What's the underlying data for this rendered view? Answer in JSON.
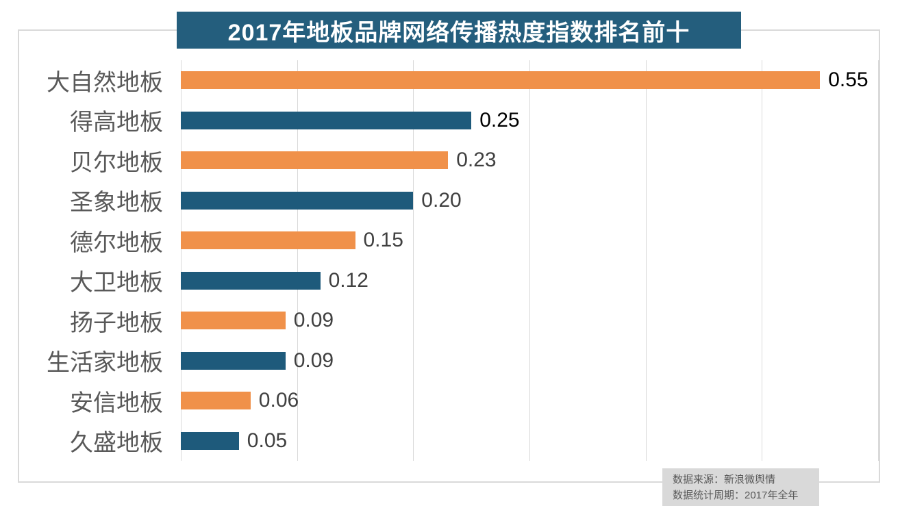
{
  "page": {
    "background": "#ffffff"
  },
  "header": {
    "title": "2017年地板品牌网络传播热度指数排名前十",
    "bg": "#245e7d",
    "text_color": "#ffffff"
  },
  "source_note": {
    "lines": [
      "数据来源：新浪微舆情",
      "数据统计周期：2017年全年"
    ],
    "bg": "#d9d9d9",
    "text_color": "#595959"
  },
  "chart_data": {
    "type": "bar",
    "orientation": "horizontal",
    "title": "2017年地板品牌网络传播热度指数排名前十",
    "categories": [
      "大自然地板",
      "得高地板",
      "贝尔地板",
      "圣象地板",
      "德尔地板",
      "大卫地板",
      "扬子地板",
      "生活家地板",
      "安信地板",
      "久盛地板"
    ],
    "values": [
      0.55,
      0.25,
      0.23,
      0.2,
      0.15,
      0.12,
      0.09,
      0.09,
      0.06,
      0.05
    ],
    "value_labels": [
      "0.55",
      "0.25",
      "0.23",
      "0.20",
      "0.15",
      "0.12",
      "0.09",
      "0.09",
      "0.06",
      "0.05"
    ],
    "bar_colors": [
      "#f0914a",
      "#1e5a7b",
      "#f0914a",
      "#1e5a7b",
      "#f0914a",
      "#1e5a7b",
      "#f0914a",
      "#1e5a7b",
      "#f0914a",
      "#1e5a7b"
    ],
    "value_label_colors": [
      "#000000",
      "#000000",
      "#404040",
      "#404040",
      "#404040",
      "#404040",
      "#404040",
      "#404040",
      "#404040",
      "#404040"
    ],
    "category_label_color": "#595959",
    "xlabel": "",
    "ylabel": "",
    "xlim": [
      0,
      0.6
    ],
    "x_ticks": [
      0,
      0.1,
      0.2,
      0.3,
      0.4,
      0.5,
      0.6
    ],
    "axis_tick_labels_shown": false,
    "grid": true,
    "gridline_color": "#d9d9d9",
    "legend": "none",
    "value_labels_shown": true
  }
}
